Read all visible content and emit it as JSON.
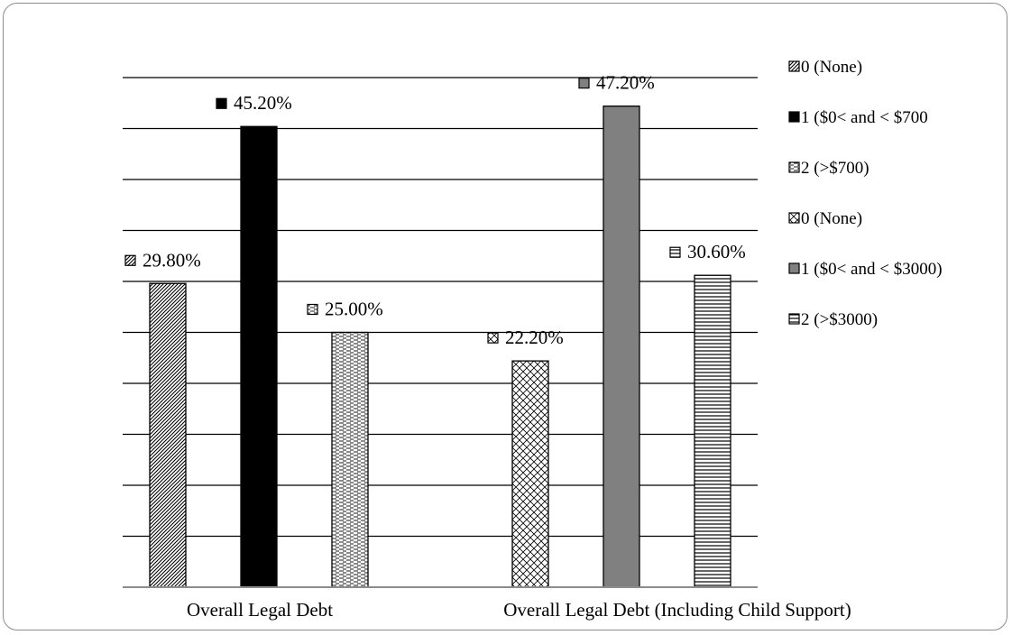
{
  "chart_data": {
    "type": "bar",
    "title": "",
    "xlabel": "",
    "ylabel": "",
    "ylim": [
      0,
      50
    ],
    "grid": true,
    "legend_position": "right",
    "groups": [
      {
        "category": "Overall Legal Debt",
        "bars": [
          {
            "legend": "0 (None)",
            "value": 29.8,
            "label": "29.80%"
          },
          {
            "legend": "1 ($0< and < $700",
            "value": 45.2,
            "label": "45.20%"
          },
          {
            "legend": "2 (>$700)",
            "value": 25.0,
            "label": "25.00%"
          }
        ]
      },
      {
        "category": "Overall Legal Debt (Including Child Support)",
        "bars": [
          {
            "legend": "0 (None)",
            "value": 22.2,
            "label": "22.20%"
          },
          {
            "legend": "1 ($0< and < $3000)",
            "value": 47.2,
            "label": "47.20%"
          },
          {
            "legend": "2 (>$3000)",
            "value": 30.6,
            "label": "30.60%"
          }
        ]
      }
    ],
    "legend": [
      "0 (None)",
      "1 ($0< and < $700",
      "2 (>$700)",
      "0 (None)",
      "1 ($0< and < $3000)",
      "2 (>$3000)"
    ],
    "colors": {
      "black": "#000000",
      "gray": "#808080",
      "gridline": "#000000",
      "axis": "#8c8c8c"
    },
    "patterns": [
      "diagonal-dense",
      "solid-black",
      "horizontal-dash",
      "crosshatch",
      "solid-gray",
      "horizontal-lines"
    ]
  }
}
